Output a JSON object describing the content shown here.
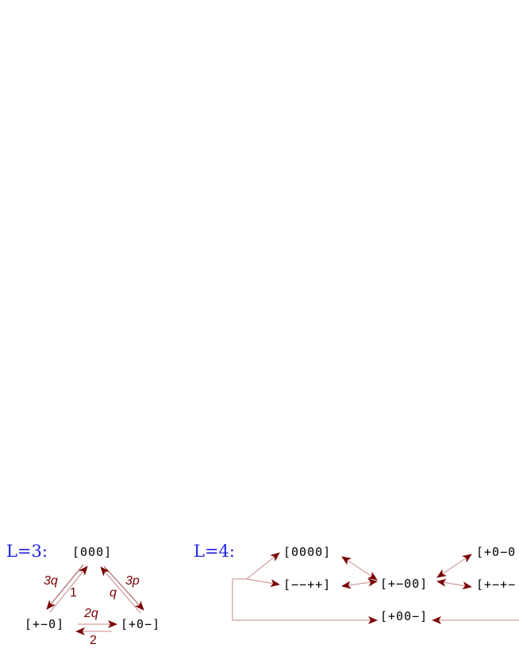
{
  "colors": {
    "section_label": "#2020e8",
    "arrowhead": "#7a0000",
    "edge": "#c88888",
    "rate": "#7a0000",
    "state": "#000000"
  },
  "l3": {
    "label": "L=3:",
    "states": {
      "top": "[000]",
      "left": "[+−0]",
      "right": "[+0−]"
    },
    "rates": {
      "top_to_left": "3q",
      "left_to_top": "1",
      "top_to_right": "3p",
      "right_to_top": "q",
      "left_to_right": "2q",
      "right_to_left": "2"
    }
  },
  "l4": {
    "label": "L=4:",
    "states": {
      "s0000": "[0000]",
      "smmpp": "[−−++]",
      "spm00": "[+−00]",
      "sp00m": "[+00−]",
      "sp0m0": "[+0−0",
      "spmpm": "[+−+−"
    }
  }
}
